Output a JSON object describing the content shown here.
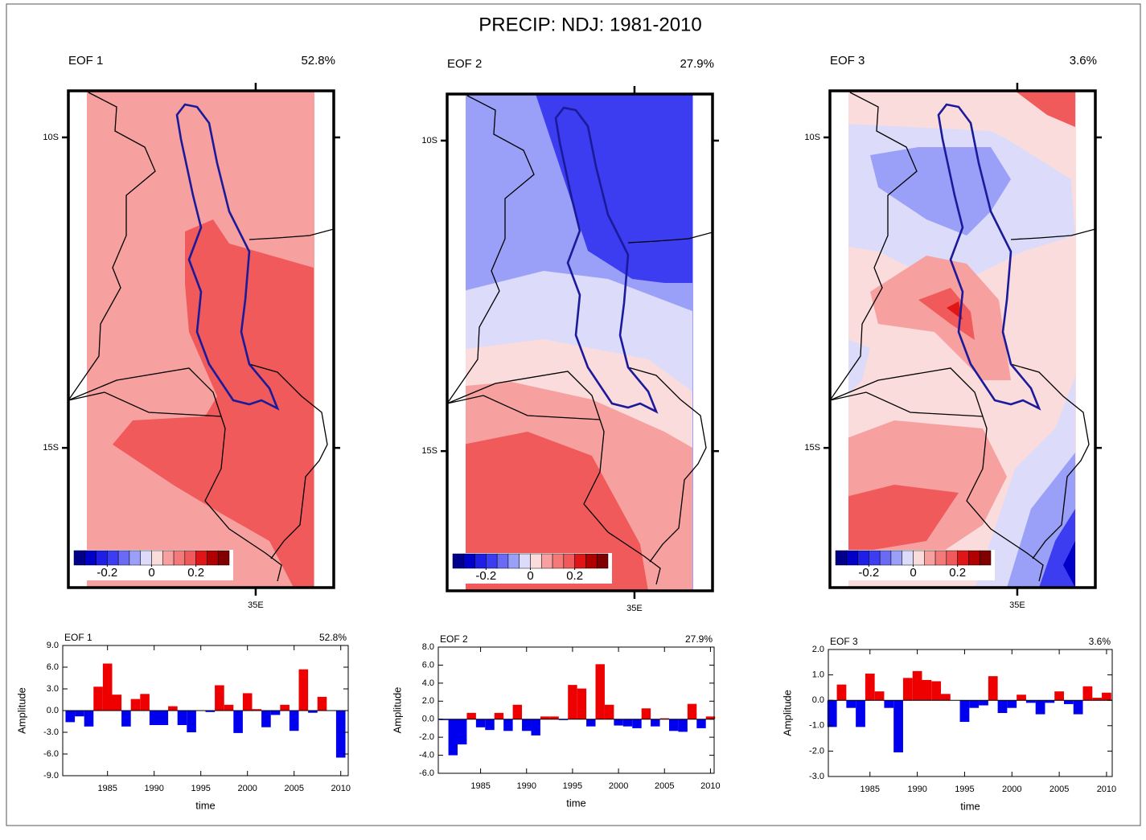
{
  "title": "PRECIP: NDJ: 1981-2010",
  "maps": [
    {
      "label": "EOF 1",
      "pct": "52.8%",
      "xlim": [
        32,
        36.25
      ],
      "ylim": [
        -17.25,
        -9.25
      ],
      "yticks": [
        {
          "value": -10,
          "label": "10S"
        },
        {
          "value": -15,
          "label": "15S"
        }
      ],
      "xticks": [
        {
          "value": 35,
          "label": "35E"
        }
      ]
    },
    {
      "label": "EOF 2",
      "pct": "27.9%",
      "xlim": [
        32,
        36.25
      ],
      "ylim": [
        -17.25,
        -9.25
      ],
      "yticks": [
        {
          "value": -10,
          "label": "10S"
        },
        {
          "value": -15,
          "label": "15S"
        }
      ],
      "xticks": [
        {
          "value": 35,
          "label": "35E"
        }
      ]
    },
    {
      "label": "EOF 3",
      "pct": "3.6%",
      "xlim": [
        32,
        36.25
      ],
      "ylim": [
        -17.25,
        -9.25
      ],
      "yticks": [
        {
          "value": -10,
          "label": "10S"
        },
        {
          "value": -15,
          "label": "15S"
        }
      ],
      "xticks": [
        {
          "value": 35,
          "label": "35E"
        }
      ]
    }
  ],
  "colorbar": {
    "lim": [
      -0.35,
      0.35
    ],
    "ticks": [
      -0.2,
      0,
      0.2
    ],
    "colors": [
      "#00008b",
      "#0000c8",
      "#1e1ee6",
      "#3c3cf0",
      "#6a6af5",
      "#9aa0f8",
      "#dcdcfa",
      "#fbdcdc",
      "#f7a0a0",
      "#f47a7a",
      "#f05a5a",
      "#e01515",
      "#b00000",
      "#800000"
    ]
  },
  "chart_data": [
    {
      "type": "bar",
      "title": "EOF 1",
      "subtitle": "52.8%",
      "xlabel": "time",
      "ylabel": "Amplitude",
      "x": [
        1981,
        1982,
        1983,
        1984,
        1985,
        1986,
        1987,
        1988,
        1989,
        1990,
        1991,
        1992,
        1993,
        1994,
        1995,
        1996,
        1997,
        1998,
        1999,
        2000,
        2001,
        2002,
        2003,
        2004,
        2005,
        2006,
        2007,
        2008,
        2009,
        2010
      ],
      "values": [
        -1.6,
        -0.8,
        -2.2,
        3.3,
        6.5,
        2.2,
        -2.2,
        1.6,
        2.3,
        -2.0,
        -2.0,
        0.6,
        -2.0,
        -3.0,
        0.0,
        -0.2,
        3.5,
        0.8,
        -3.1,
        2.4,
        0.2,
        -2.3,
        -0.6,
        0.8,
        -2.8,
        5.7,
        -0.3,
        1.9,
        0.0,
        -6.5
      ],
      "xlim": [
        1980.2,
        2010.8
      ],
      "xticks": [
        1985,
        1990,
        1995,
        2000,
        2005,
        2010
      ],
      "ylim": [
        -9,
        9
      ],
      "yticks": [
        {
          "value": -9,
          "label": "-9.0"
        },
        {
          "value": -6,
          "label": "-6.0"
        },
        {
          "value": -3,
          "label": "-3.0"
        },
        {
          "value": 0,
          "label": "0.0"
        },
        {
          "value": 3,
          "label": "3.0"
        },
        {
          "value": 6,
          "label": "6.0"
        },
        {
          "value": 9,
          "label": "9.0"
        }
      ],
      "pos_color": "#ee0000",
      "neg_color": "#0000ee"
    },
    {
      "type": "bar",
      "title": "EOF 2",
      "subtitle": "27.9%",
      "xlabel": "time",
      "ylabel": "Amplitude",
      "x": [
        1981,
        1982,
        1983,
        1984,
        1985,
        1986,
        1987,
        1988,
        1989,
        1990,
        1991,
        1992,
        1993,
        1994,
        1995,
        1996,
        1997,
        1998,
        1999,
        2000,
        2001,
        2002,
        2003,
        2004,
        2005,
        2006,
        2007,
        2008,
        2009,
        2010
      ],
      "values": [
        -0.1,
        -4.0,
        -2.8,
        0.7,
        -0.9,
        -1.2,
        0.7,
        -1.3,
        1.6,
        -1.3,
        -1.8,
        0.3,
        0.3,
        -0.1,
        3.8,
        3.4,
        -0.8,
        6.1,
        1.6,
        -0.7,
        -0.8,
        -1.0,
        1.2,
        -0.8,
        0.1,
        -1.3,
        -1.4,
        1.7,
        -1.0,
        0.3
      ],
      "xlim": [
        1980.4,
        2010.4
      ],
      "xticks": [
        1985,
        1990,
        1995,
        2000,
        2005,
        2010
      ],
      "ylim": [
        -6,
        8
      ],
      "yticks": [
        {
          "value": -6,
          "label": "-6.0"
        },
        {
          "value": -4,
          "label": "-4.0"
        },
        {
          "value": -2,
          "label": "-2.0"
        },
        {
          "value": 0,
          "label": "0.0"
        },
        {
          "value": 2,
          "label": "2.0"
        },
        {
          "value": 4,
          "label": "4.0"
        },
        {
          "value": 6,
          "label": "6.0"
        },
        {
          "value": 8,
          "label": "8.0"
        }
      ],
      "pos_color": "#ee0000",
      "neg_color": "#0000ee"
    },
    {
      "type": "bar",
      "title": "EOF 3",
      "subtitle": "3.6%",
      "xlabel": "time",
      "ylabel": "Amplitude",
      "x": [
        1981,
        1982,
        1983,
        1984,
        1985,
        1986,
        1987,
        1988,
        1989,
        1990,
        1991,
        1992,
        1993,
        1994,
        1995,
        1996,
        1997,
        1998,
        1999,
        2000,
        2001,
        2002,
        2003,
        2004,
        2005,
        2006,
        2007,
        2008,
        2009,
        2010
      ],
      "values": [
        -1.05,
        0.62,
        -0.3,
        -1.05,
        1.05,
        0.35,
        -0.3,
        -2.05,
        0.88,
        1.15,
        0.8,
        0.75,
        0.25,
        0.0,
        -0.85,
        -0.3,
        -0.2,
        0.95,
        -0.5,
        -0.3,
        0.22,
        -0.1,
        -0.55,
        -0.1,
        0.35,
        -0.15,
        -0.55,
        0.55,
        0.1,
        0.3
      ],
      "xlim": [
        1980.6,
        2010.6
      ],
      "xticks": [
        1985,
        1990,
        1995,
        2000,
        2005,
        2010
      ],
      "ylim": [
        -3,
        2
      ],
      "yticks": [
        {
          "value": -3,
          "label": "-3.0"
        },
        {
          "value": -2,
          "label": "-2.0"
        },
        {
          "value": -1,
          "label": "-1.0"
        },
        {
          "value": 0,
          "label": "0.0"
        },
        {
          "value": 1,
          "label": "1.0"
        },
        {
          "value": 2,
          "label": "2.0"
        }
      ],
      "pos_color": "#ee0000",
      "neg_color": "#0000ee"
    }
  ]
}
